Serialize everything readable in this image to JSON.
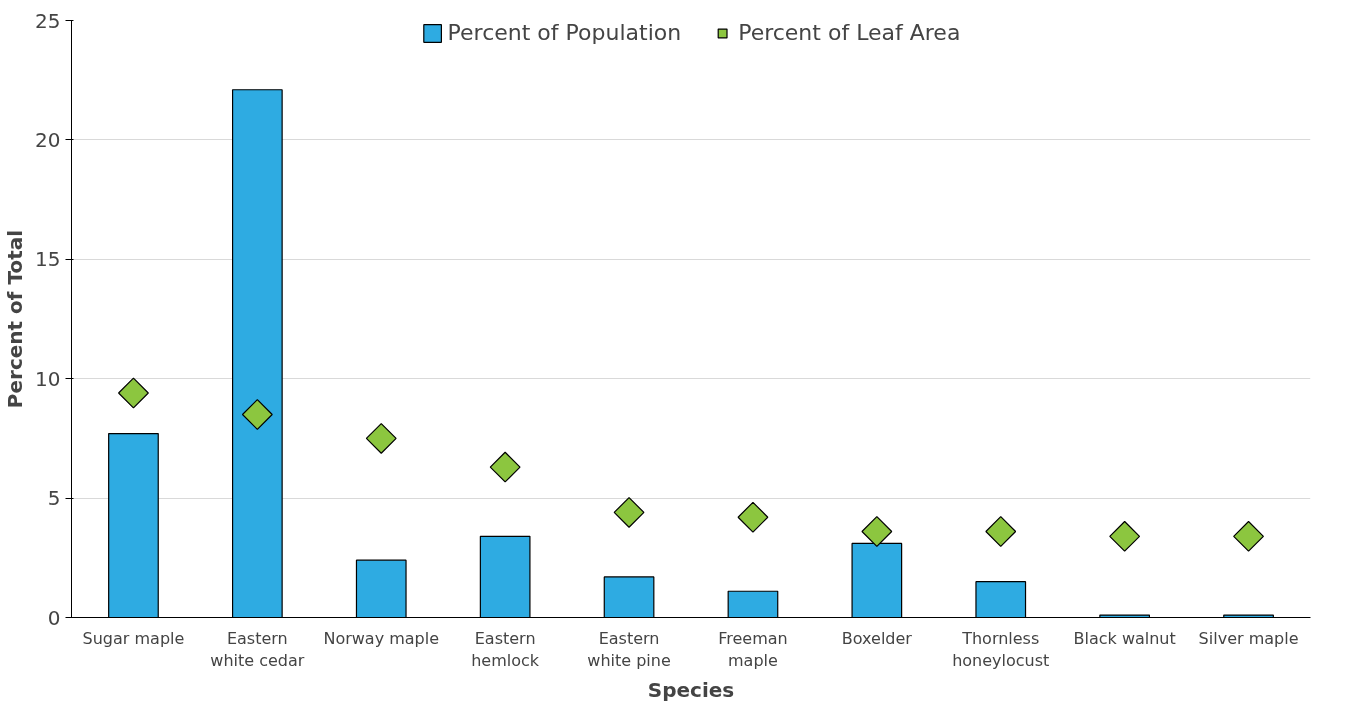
{
  "chart_data": {
    "type": "bar",
    "xlabel": "Species",
    "ylabel": "Percent of Total",
    "categories": [
      "Sugar maple",
      "Eastern white cedar",
      "Norway maple",
      "Eastern hemlock",
      "Eastern white pine",
      "Freeman maple",
      "Boxelder",
      "Thornless honeylocust",
      "Black walnut",
      "Silver maple"
    ],
    "series": [
      {
        "name": "Percent of Population",
        "color": "#2eabe2",
        "values": [
          7.7,
          22.1,
          2.4,
          3.4,
          1.7,
          1.1,
          3.1,
          1.5,
          0.1,
          0.1
        ]
      },
      {
        "name": "Percent of Leaf Area",
        "type": "scatter",
        "color": "#8cc63f",
        "marker": "diamond",
        "values": [
          9.4,
          8.5,
          7.5,
          6.3,
          4.4,
          4.2,
          3.6,
          3.6,
          3.4,
          3.4
        ]
      }
    ],
    "ylim": [
      0,
      25
    ],
    "yticks": [
      0,
      5,
      10,
      15,
      20,
      25
    ],
    "grid": "y",
    "legend": "top"
  }
}
